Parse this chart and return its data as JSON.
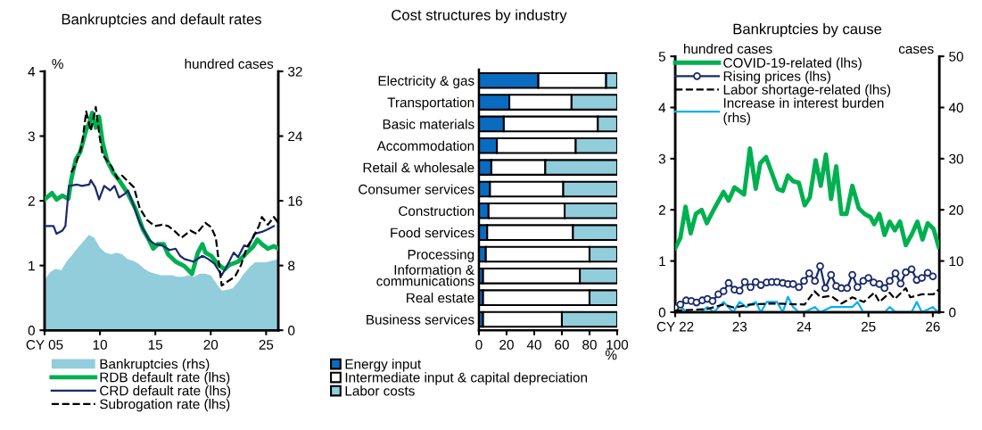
{
  "chart_data": [
    {
      "type": "line",
      "title": "Bankruptcies and default rates",
      "ylabel": "%",
      "y2label": "hundred cases",
      "xlim": [
        2005,
        2026.1
      ],
      "xticks": [
        {
          "value": 2005,
          "label": "CY 05"
        },
        {
          "value": 2010,
          "label": "10"
        },
        {
          "value": 2015,
          "label": "15"
        },
        {
          "value": 2020,
          "label": "20"
        },
        {
          "value": 2025,
          "label": "25"
        }
      ],
      "ylim": [
        0,
        4
      ],
      "yticks": [
        0,
        1,
        2,
        3,
        4
      ],
      "y2lim": [
        0,
        32
      ],
      "y2ticks": [
        0,
        8,
        16,
        24,
        32
      ],
      "legend": "bottom",
      "series": [
        {
          "name": "Bankruptcies (rhs)",
          "type": "area",
          "axis": "y2",
          "color": "#92cddc",
          "x": [
            2005,
            2005.5,
            2006,
            2006.5,
            2007,
            2007.5,
            2008,
            2008.5,
            2009,
            2009.5,
            2010,
            2010.5,
            2011,
            2011.5,
            2012,
            2012.5,
            2013,
            2013.5,
            2014,
            2014.5,
            2015,
            2015.5,
            2016,
            2016.5,
            2017,
            2017.5,
            2018,
            2018.5,
            2019,
            2019.5,
            2020,
            2020.3,
            2020.6,
            2021,
            2021.5,
            2022,
            2022.5,
            2023,
            2023.5,
            2024,
            2024.5,
            2025,
            2025.5,
            2026.1
          ],
          "values": [
            6.2,
            7.2,
            7.6,
            7.4,
            8.5,
            9.3,
            10.2,
            11,
            11.8,
            11.4,
            10.2,
            9.6,
            9.4,
            9.6,
            9.4,
            8.8,
            8.6,
            8.2,
            7.6,
            7.2,
            7.0,
            6.8,
            6.8,
            6.8,
            6.6,
            6.6,
            6.8,
            6.6,
            7.0,
            7.0,
            6.8,
            6.2,
            5.6,
            4.9,
            5.0,
            5.2,
            6.0,
            7.0,
            7.8,
            8.4,
            8.4,
            8.4,
            8.6,
            8.8
          ]
        },
        {
          "name": "RDB default rate (lhs)",
          "color": "#00b050",
          "x": [
            2005.0,
            2005.67,
            2006.08,
            2006.61,
            2007.15,
            2007.42,
            2007.82,
            2008.23,
            2008.76,
            2009.03,
            2009.3,
            2009.62,
            2009.92,
            2010.24,
            2010.65,
            2011.18,
            2011.72,
            2012.53,
            2013.2,
            2013.87,
            2014.41,
            2014.81,
            2015.22,
            2015.75,
            2016.16,
            2016.83,
            2017.63,
            2018.31,
            2018.84,
            2019.25,
            2019.52,
            2020.05,
            2020.59,
            2021.26,
            2021.67,
            2022.47,
            2023.28,
            2023.82,
            2024.22,
            2024.62,
            2025.16,
            2025.7,
            2026.1
          ],
          "values": [
            2.02,
            2.12,
            2.02,
            2.08,
            2.03,
            2.34,
            2.64,
            2.76,
            3.1,
            3.2,
            3.36,
            3.13,
            3.3,
            2.9,
            2.62,
            2.44,
            2.32,
            2.11,
            1.88,
            1.56,
            1.4,
            1.26,
            1.33,
            1.33,
            1.17,
            1.06,
            0.99,
            0.87,
            1.2,
            1.33,
            1.2,
            1.15,
            1.03,
            0.94,
            1.01,
            1.06,
            1.2,
            1.29,
            1.4,
            1.33,
            1.26,
            1.3,
            1.26
          ]
        },
        {
          "name": "CRD default rate (lhs)",
          "color": "#1a2a6c",
          "x": [
            2005.0,
            2005.81,
            2006.08,
            2006.61,
            2006.88,
            2007.2,
            2007.96,
            2008.36,
            2009.03,
            2009.17,
            2009.57,
            2009.92,
            2010.38,
            2010.91,
            2011.32,
            2011.72,
            2012.26,
            2012.53,
            2012.93,
            2013.6,
            2014.41,
            2014.95,
            2015.62,
            2016.29,
            2016.83,
            2017.23,
            2017.63,
            2018.44,
            2019.25,
            2019.78,
            2020.32,
            2020.99,
            2021.4,
            2022.07,
            2022.47,
            2023.01,
            2023.41,
            2023.95,
            2024.62,
            2025.16,
            2025.7
          ],
          "values": [
            1.61,
            1.61,
            1.49,
            1.54,
            1.61,
            2.23,
            2.25,
            2.23,
            2.25,
            2.32,
            2.21,
            2.02,
            2.23,
            2.16,
            2.23,
            2.05,
            2.11,
            2.16,
            1.98,
            1.66,
            1.4,
            1.33,
            1.31,
            1.24,
            1.26,
            1.15,
            1.1,
            1.06,
            1.15,
            1.1,
            1.03,
            0.85,
            0.97,
            1.2,
            1.13,
            1.31,
            1.29,
            1.49,
            1.52,
            1.56,
            1.61
          ]
        },
        {
          "name": "Subrogation rate (lhs)",
          "color": "#000000",
          "line_style": "dashed",
          "x": [
            2007.42,
            2007.82,
            2008.36,
            2008.76,
            2009.17,
            2009.62,
            2009.97,
            2010.24,
            2010.65,
            2011.05,
            2011.59,
            2011.99,
            2012.53,
            2013.06,
            2013.6,
            2014.27,
            2014.95,
            2015.62,
            2016.16,
            2016.69,
            2017.37,
            2018.17,
            2018.71,
            2019.52,
            2020.05,
            2020.46,
            2020.99,
            2021.4,
            2022.2,
            2022.74,
            2023.28,
            2023.82,
            2024.35,
            2024.62,
            2025.16,
            2025.7,
            2026.1
          ],
          "values": [
            2.44,
            2.57,
            2.85,
            3.38,
            3.08,
            3.45,
            2.99,
            2.71,
            2.62,
            2.53,
            2.34,
            2.39,
            2.3,
            2.21,
            1.88,
            1.7,
            1.61,
            1.63,
            1.61,
            1.54,
            1.43,
            1.54,
            1.49,
            1.66,
            1.59,
            1.43,
            0.69,
            0.74,
            0.83,
            1.01,
            1.29,
            1.43,
            1.61,
            1.75,
            1.63,
            1.75,
            1.66
          ]
        }
      ]
    },
    {
      "type": "bar",
      "orientation": "horizontal",
      "stacked": true,
      "title": "Cost structures by industry",
      "xlabel": "%",
      "categories": [
        "Electricity & gas",
        "Transportation",
        "Basic materials",
        "Accommodation",
        "Retail & wholesale",
        "Consumer services",
        "Construction",
        "Food services",
        "Processing",
        "Information &\ncommunications",
        "Real estate",
        "Business services"
      ],
      "xlim": [
        0,
        100
      ],
      "xticks": [
        0,
        20,
        40,
        60,
        80,
        100
      ],
      "legend": "bottom",
      "series": [
        {
          "name": "Energy input",
          "color": "#0a6cc0",
          "values": [
            43,
            22,
            18,
            13,
            9,
            8,
            7,
            6,
            5,
            3,
            3,
            3
          ]
        },
        {
          "name": "Intermediate input & capital depreciation",
          "color": "#ffffff",
          "values": [
            49,
            45,
            68,
            57,
            39,
            53,
            55,
            62,
            75,
            70,
            77,
            57
          ]
        },
        {
          "name": "Labor costs",
          "color": "#92cddc",
          "values": [
            8,
            33,
            14,
            30,
            52,
            39,
            38,
            32,
            20,
            27,
            20,
            40
          ]
        }
      ]
    },
    {
      "type": "line",
      "title": "Bankruptcies by cause",
      "ylabel": "hundred cases",
      "y2label": "cases",
      "xlim": [
        2022,
        2026.1
      ],
      "xticks": [
        {
          "value": 2022,
          "label": "CY 22"
        },
        {
          "value": 2023,
          "label": "23"
        },
        {
          "value": 2024,
          "label": "24"
        },
        {
          "value": 2025,
          "label": "25"
        },
        {
          "value": 2026,
          "label": "26"
        }
      ],
      "ylim": [
        0,
        5
      ],
      "yticks": [
        0,
        1,
        2,
        3,
        4,
        5
      ],
      "y2lim": [
        0,
        50
      ],
      "y2ticks": [
        0,
        10,
        20,
        30,
        40,
        50
      ],
      "legend": "top",
      "series": [
        {
          "name": "COVID-19-related (lhs)",
          "color": "#00b050",
          "x": [
            2022.0,
            2022.08,
            2022.16,
            2022.24,
            2022.32,
            2022.41,
            2022.49,
            2022.61,
            2022.75,
            2022.83,
            2022.92,
            2023.07,
            2023.16,
            2023.25,
            2023.32,
            2023.41,
            2023.59,
            2023.67,
            2023.75,
            2023.83,
            2023.92,
            2024.01,
            2024.09,
            2024.18,
            2024.26,
            2024.34,
            2024.42,
            2024.5,
            2024.58,
            2024.66,
            2024.75,
            2024.85,
            2024.94,
            2025.03,
            2025.09,
            2025.17,
            2025.25,
            2025.33,
            2025.41,
            2025.49,
            2025.58,
            2025.68,
            2025.76,
            2025.84,
            2025.92,
            2026.01,
            2026.09
          ],
          "values": [
            1.25,
            1.45,
            2.06,
            1.54,
            1.92,
            2.0,
            1.74,
            2.03,
            2.35,
            2.18,
            2.44,
            2.3,
            3.2,
            2.41,
            2.91,
            3.03,
            2.41,
            2.37,
            2.67,
            2.56,
            2.53,
            2.09,
            2.24,
            2.97,
            2.47,
            3.08,
            2.21,
            2.85,
            1.92,
            1.92,
            2.47,
            2.03,
            1.92,
            1.86,
            1.72,
            1.92,
            1.51,
            1.77,
            1.6,
            1.77,
            1.31,
            1.54,
            1.77,
            1.42,
            1.74,
            1.63,
            1.28
          ]
        },
        {
          "name": "Rising prices (lhs)",
          "color": "#1a2a6c",
          "marker": "circle",
          "x": [
            2022.0,
            2022.08,
            2022.17,
            2022.25,
            2022.33,
            2022.42,
            2022.5,
            2022.58,
            2022.67,
            2022.75,
            2022.83,
            2022.92,
            2023.0,
            2023.08,
            2023.17,
            2023.25,
            2023.33,
            2023.42,
            2023.5,
            2023.58,
            2023.67,
            2023.75,
            2023.83,
            2023.92,
            2024.0,
            2024.08,
            2024.17,
            2024.25,
            2024.33,
            2024.42,
            2024.5,
            2024.58,
            2024.67,
            2024.75,
            2024.83,
            2024.92,
            2025.0,
            2025.08,
            2025.17,
            2025.25,
            2025.33,
            2025.42,
            2025.5,
            2025.58,
            2025.67,
            2025.75,
            2025.83,
            2025.92,
            2026.0
          ],
          "values": [
            0.09,
            0.15,
            0.23,
            0.22,
            0.19,
            0.23,
            0.26,
            0.22,
            0.35,
            0.41,
            0.57,
            0.44,
            0.42,
            0.59,
            0.49,
            0.59,
            0.53,
            0.58,
            0.59,
            0.59,
            0.57,
            0.55,
            0.55,
            0.49,
            0.61,
            0.76,
            0.61,
            0.9,
            0.47,
            0.73,
            0.51,
            0.47,
            0.47,
            0.73,
            0.49,
            0.61,
            0.67,
            0.58,
            0.55,
            0.47,
            0.61,
            0.76,
            0.56,
            0.78,
            0.84,
            0.63,
            0.67,
            0.77,
            0.7
          ]
        },
        {
          "name": "Labor shortage-related (lhs)",
          "color": "#000000",
          "line_style": "dashed",
          "x": [
            2022.0,
            2022.49,
            2022.75,
            2022.91,
            2023.16,
            2023.51,
            2024.01,
            2024.16,
            2024.26,
            2024.42,
            2024.58,
            2024.75,
            2024.93,
            2025.09,
            2025.17,
            2025.33,
            2025.41,
            2025.58,
            2025.65,
            2025.83,
            2026.01,
            2026.09
          ],
          "values": [
            0.03,
            0.06,
            0.15,
            0.09,
            0.15,
            0.17,
            0.15,
            0.41,
            0.29,
            0.32,
            0.17,
            0.29,
            0.2,
            0.38,
            0.2,
            0.38,
            0.26,
            0.47,
            0.29,
            0.35,
            0.35,
            0.44
          ]
        },
        {
          "name": "Increase in interest burden\n(rhs)",
          "color": "#00b0f0",
          "axis": "y2",
          "x": [
            2022.0,
            2022.1,
            2022.17,
            2022.4,
            2022.5,
            2022.6,
            2022.75,
            2022.9,
            2023.0,
            2023.1,
            2023.25,
            2023.33,
            2023.42,
            2023.58,
            2023.67,
            2023.75,
            2023.83,
            2023.92,
            2024.0,
            2024.17,
            2024.25,
            2024.42,
            2024.58,
            2024.75,
            2024.83,
            2024.92,
            2025.25,
            2025.33,
            2025.42,
            2025.67,
            2025.75,
            2025.83,
            2026.0,
            2026.08
          ],
          "values": [
            1,
            1,
            0,
            0,
            1,
            0,
            2,
            0,
            2,
            1,
            2,
            0,
            2,
            2,
            0,
            3,
            1,
            0,
            0,
            1,
            0,
            1,
            1,
            1,
            2,
            0,
            0,
            1,
            0,
            0,
            2,
            0,
            1,
            0
          ]
        }
      ]
    }
  ]
}
